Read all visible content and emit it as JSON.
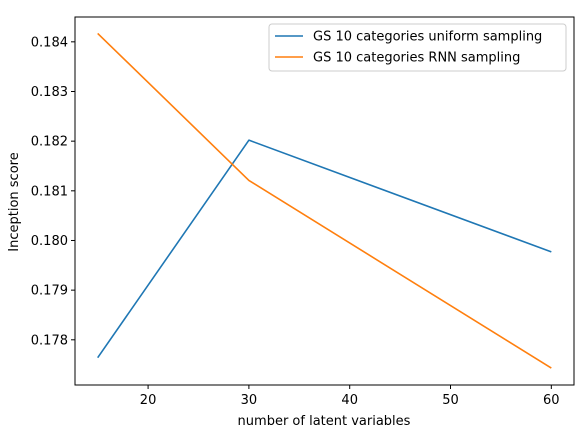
{
  "chart_data": {
    "type": "line",
    "title": "",
    "xlabel": "number of latent variables",
    "ylabel": "Inception score",
    "x": [
      15,
      30,
      60
    ],
    "series": [
      {
        "name": "GS 10 categories uniform sampling",
        "color": "#1f77b4",
        "values": [
          0.17764,
          0.18202,
          0.17977
        ]
      },
      {
        "name": "GS 10 categories RNN sampling",
        "color": "#ff7f0e",
        "values": [
          0.18417,
          0.18121,
          0.17743
        ]
      }
    ],
    "xlim": [
      12.75,
      62.25
    ],
    "ylim": [
      0.17709,
      0.1845
    ],
    "xticks": [
      20,
      30,
      40,
      50,
      60
    ],
    "yticks": [
      0.178,
      0.179,
      0.18,
      0.181,
      0.182,
      0.183,
      0.184
    ],
    "ytick_labels": [
      "0.178",
      "0.179",
      "0.180",
      "0.181",
      "0.182",
      "0.183",
      "0.184"
    ],
    "grid": false,
    "legend_position": "top-right"
  }
}
